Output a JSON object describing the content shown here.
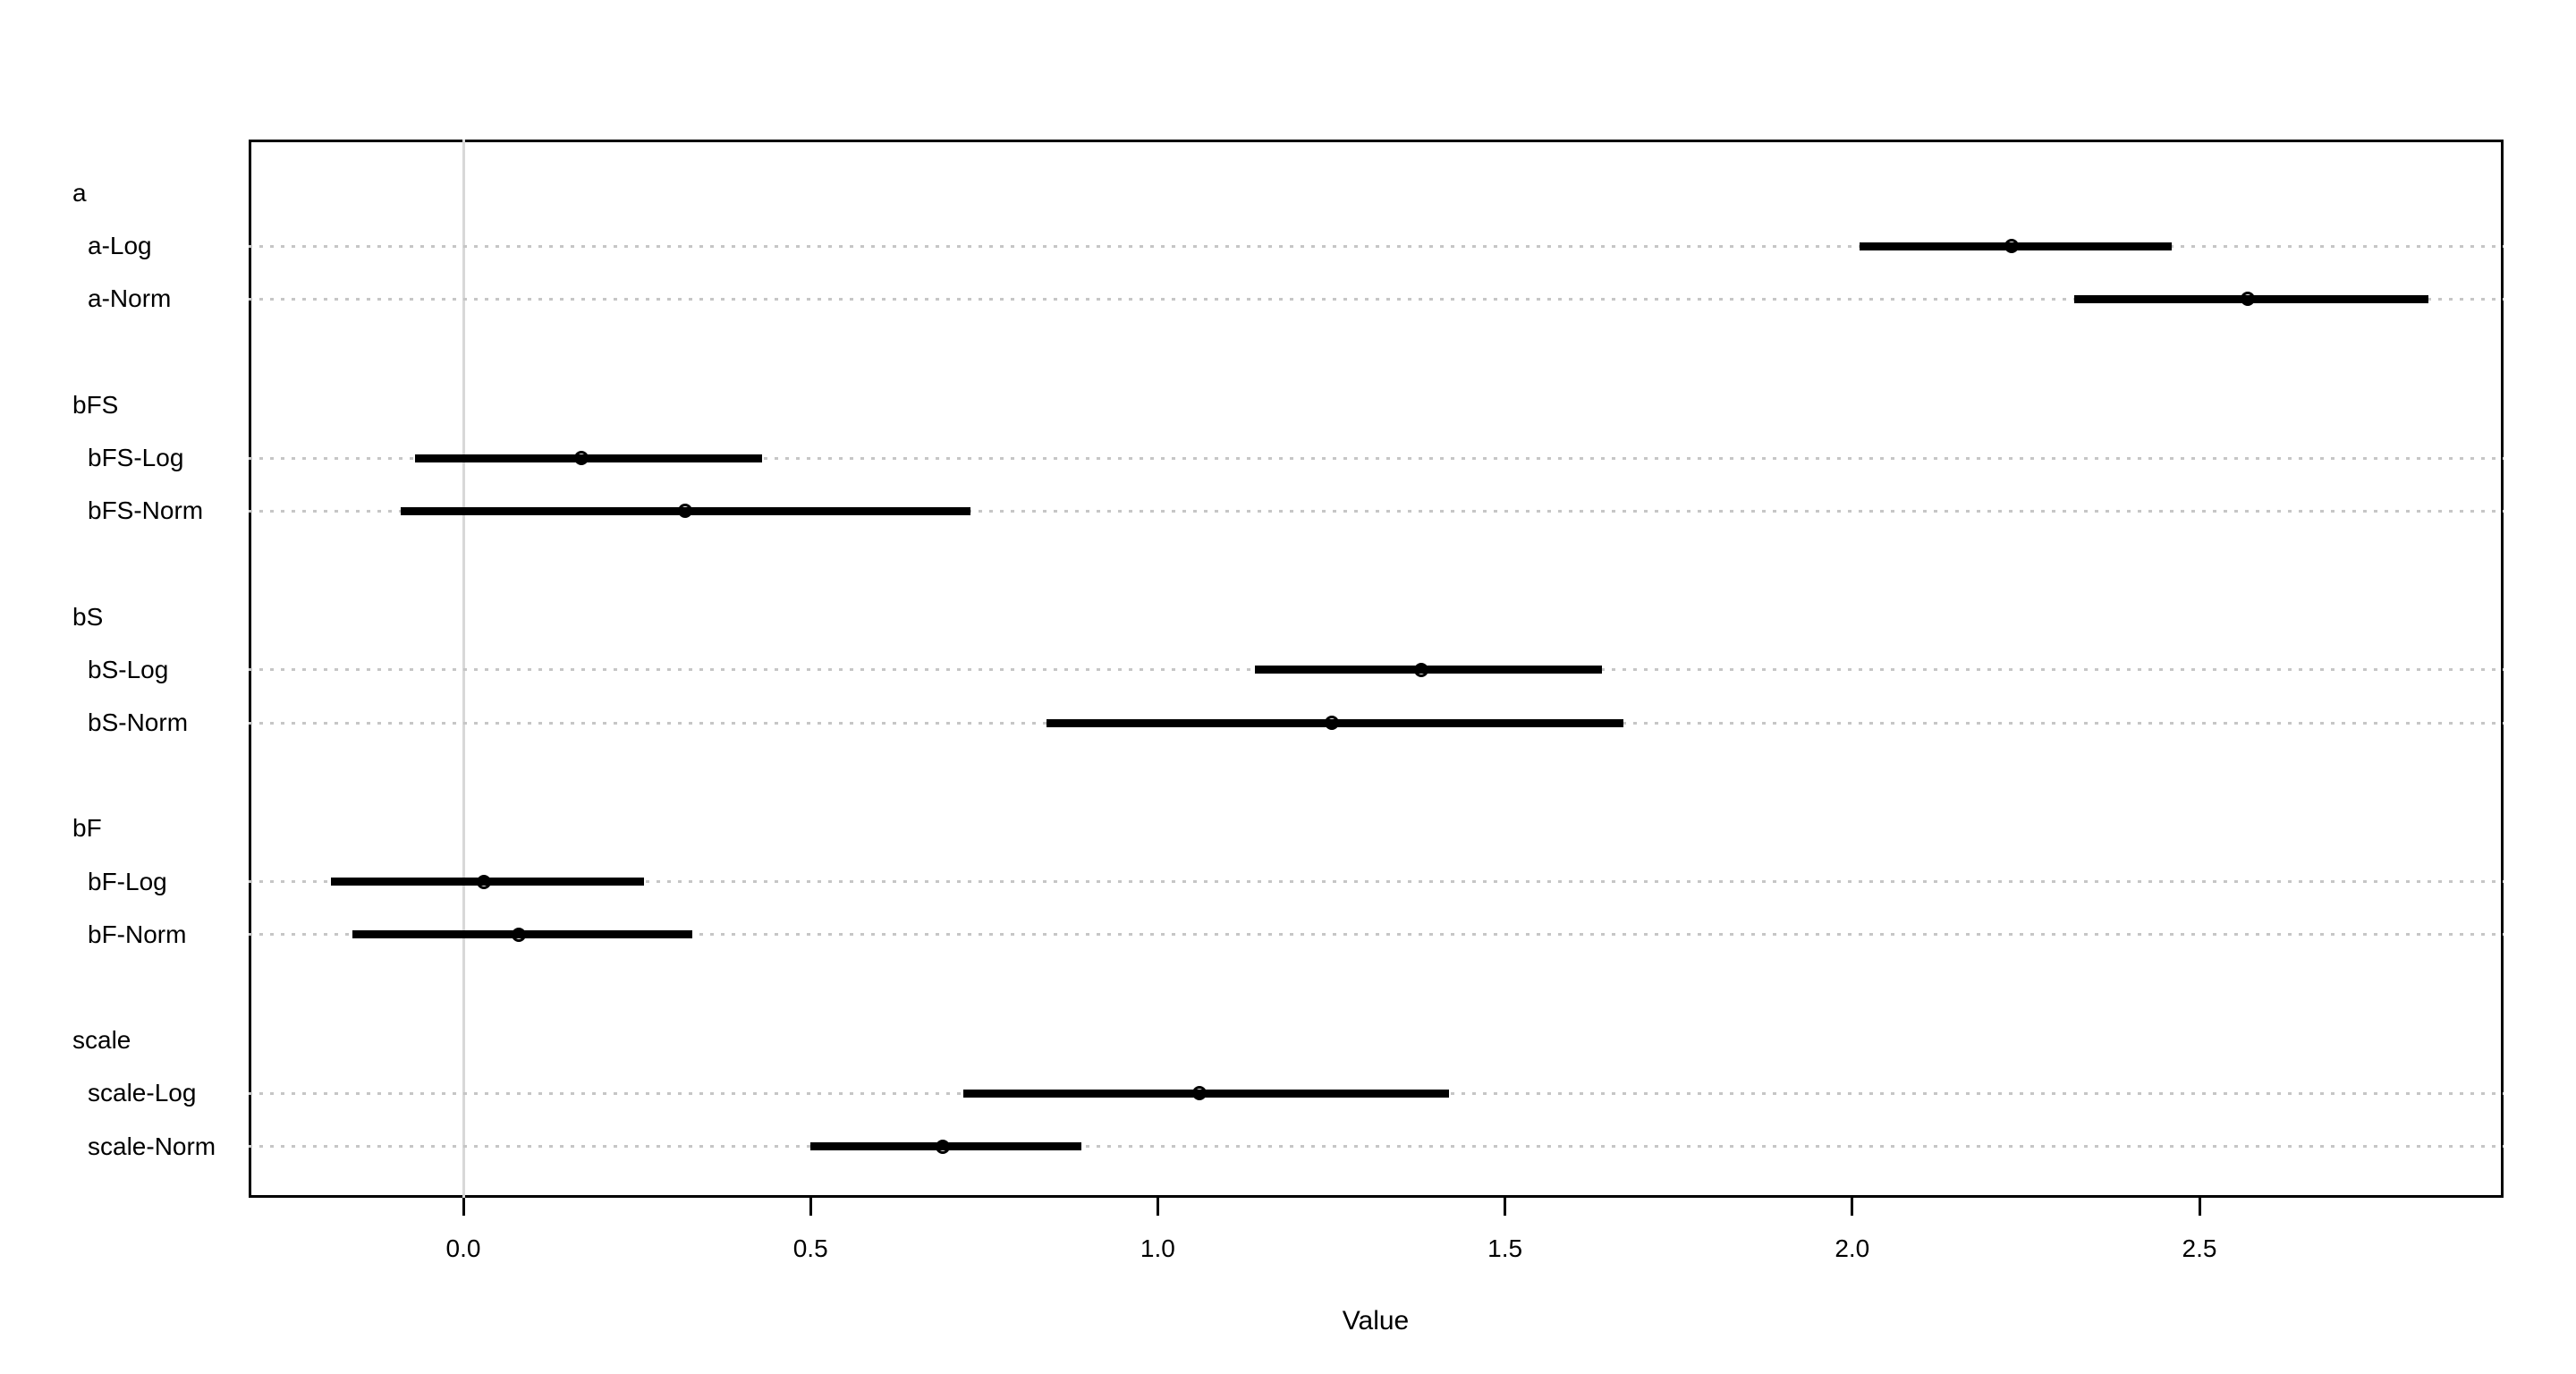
{
  "chart_data": {
    "type": "scatter",
    "subtype": "dotplot-with-intervals",
    "title": "",
    "xlabel": "Value",
    "ylabel": "",
    "xlim": [
      -0.31,
      2.94
    ],
    "x_ticks": [
      0.0,
      0.5,
      1.0,
      1.5,
      2.0,
      2.5
    ],
    "x_tick_labels": [
      "0.0",
      "0.5",
      "1.0",
      "1.5",
      "2.0",
      "2.5"
    ],
    "reference_line_x": 0,
    "grid": "dotted-horizontal-per-row",
    "legend": "none",
    "marker_style": "open-circle",
    "groups": [
      {
        "label": "a",
        "items": [
          {
            "label": "a-Log",
            "estimate": 2.23,
            "lower": 2.01,
            "upper": 2.46
          },
          {
            "label": "a-Norm",
            "estimate": 2.57,
            "lower": 2.32,
            "upper": 2.83
          }
        ]
      },
      {
        "label": "bFS",
        "items": [
          {
            "label": "bFS-Log",
            "estimate": 0.17,
            "lower": -0.07,
            "upper": 0.43
          },
          {
            "label": "bFS-Norm",
            "estimate": 0.32,
            "lower": -0.09,
            "upper": 0.73
          }
        ]
      },
      {
        "label": "bS",
        "items": [
          {
            "label": "bS-Log",
            "estimate": 1.38,
            "lower": 1.14,
            "upper": 1.64
          },
          {
            "label": "bS-Norm",
            "estimate": 1.25,
            "lower": 0.84,
            "upper": 1.67
          }
        ]
      },
      {
        "label": "bF",
        "items": [
          {
            "label": "bF-Log",
            "estimate": 0.03,
            "lower": -0.19,
            "upper": 0.26
          },
          {
            "label": "bF-Norm",
            "estimate": 0.08,
            "lower": -0.16,
            "upper": 0.33
          }
        ]
      },
      {
        "label": "scale",
        "items": [
          {
            "label": "scale-Log",
            "estimate": 1.06,
            "lower": 0.72,
            "upper": 1.42
          },
          {
            "label": "scale-Norm",
            "estimate": 0.69,
            "lower": 0.5,
            "upper": 0.89
          }
        ]
      }
    ],
    "colors": {
      "background": "#ffffff",
      "text": "#000000",
      "box_border": "#000000",
      "interval_line": "#000000",
      "marker_stroke": "#000000",
      "gridline": "#c6c6c6",
      "reference_line": "#d8d8d8"
    }
  }
}
